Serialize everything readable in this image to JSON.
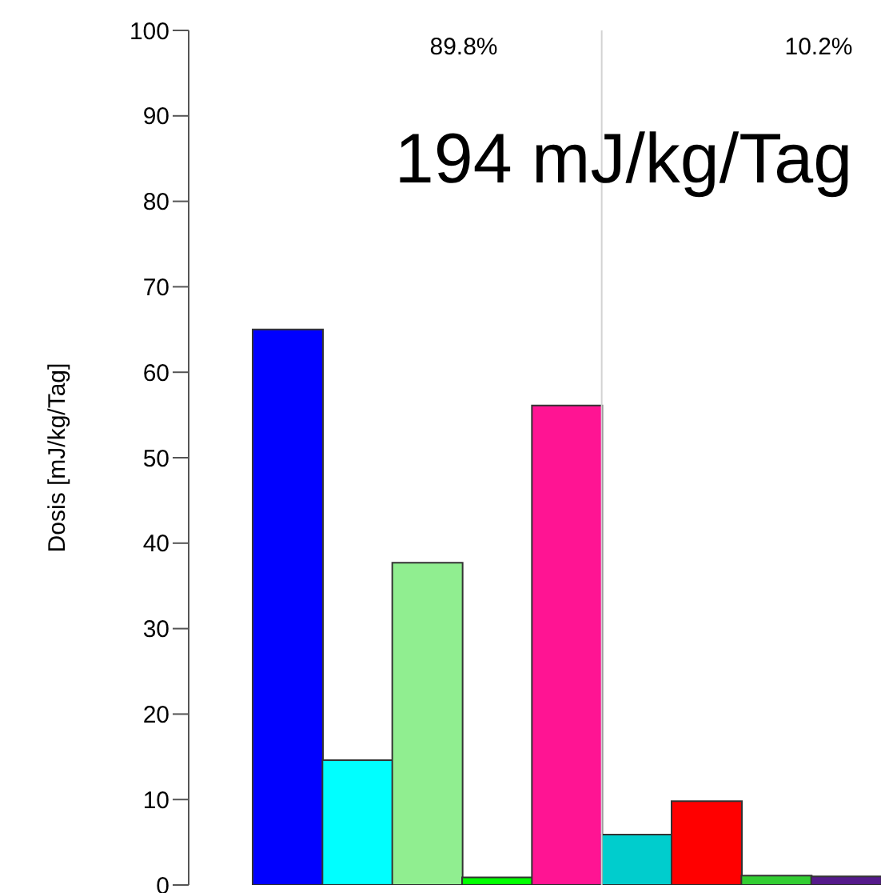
{
  "chart_data": {
    "type": "bar",
    "ylabel": "Dosis [mJ/kg/Tag]",
    "categories": [
      null,
      null,
      null,
      null,
      null,
      null,
      null,
      null,
      null
    ],
    "values": [
      65,
      14.6,
      37.7,
      0.9,
      56.1,
      5.9,
      9.8,
      1.1,
      1.0
    ],
    "colors": [
      "#0000ff",
      "#00ffff",
      "#90ee90",
      "#00ff00",
      "#ff1493",
      "#00cdcd",
      "#ff0000",
      "#32cd32",
      "#551a8b"
    ],
    "ylim": [
      0,
      100
    ],
    "yticks": [
      0,
      10,
      20,
      30,
      40,
      50,
      60,
      70,
      80,
      90,
      100
    ],
    "tick_labels": "y",
    "annotations": [
      "89.8%",
      "10.2%",
      "194 mJ/kg/Tag"
    ]
  }
}
